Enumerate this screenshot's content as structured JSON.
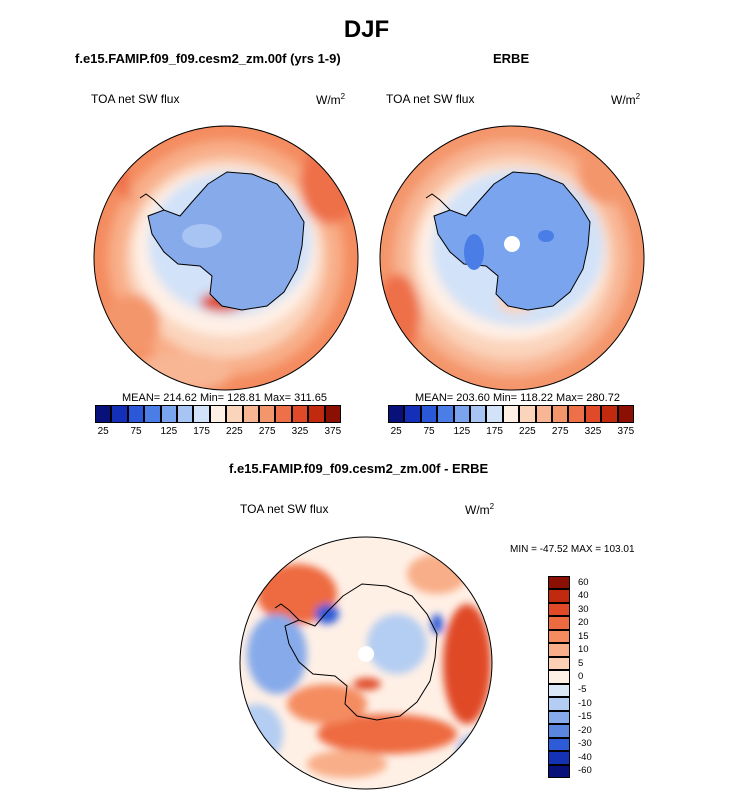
{
  "figure": {
    "title": "DJF"
  },
  "panels": [
    {
      "id": "model",
      "title": "f.e15.FAMIP.f09_f09.cesm2_zm.00f (yrs 1-9)",
      "variable": "TOA net SW flux",
      "units_base": "W/m",
      "units_exp": "2",
      "stats": "MEAN= 214.62  Min= 128.81  Max= 311.65"
    },
    {
      "id": "obs",
      "title": "ERBE",
      "variable": "TOA net SW flux",
      "units_base": "W/m",
      "units_exp": "2",
      "stats": "MEAN= 203.60  Min= 118.22  Max= 280.72"
    },
    {
      "id": "diff",
      "title": "f.e15.FAMIP.f09_f09.cesm2_zm.00f - ERBE",
      "variable": "TOA net SW flux",
      "units_base": "W/m",
      "units_exp": "2",
      "stats": "MIN = -47.52 MAX = 103.01"
    }
  ],
  "colorbars": {
    "absolute": {
      "colors": [
        "#08107a",
        "#1530b8",
        "#2a58d8",
        "#4a7ee6",
        "#7aa4ee",
        "#a8c4f2",
        "#d2e2f8",
        "#fff0e6",
        "#fbd4bc",
        "#f8b694",
        "#f4966c",
        "#ee7048",
        "#e04a28",
        "#c22a10",
        "#8c0f04"
      ],
      "tick_labels": [
        "25",
        "75",
        "125",
        "175",
        "225",
        "275",
        "325",
        "375"
      ]
    },
    "difference": {
      "colors": [
        "#8c0f04",
        "#c22a10",
        "#e04a28",
        "#ee6a40",
        "#f48c60",
        "#f8ae88",
        "#fbd0b4",
        "#fff0e6",
        "#dbe8f8",
        "#b4cdf2",
        "#86aaea",
        "#5a86e0",
        "#2e5cd8",
        "#1532b4",
        "#08107a"
      ],
      "tick_labels": [
        "60",
        "40",
        "30",
        "20",
        "15",
        "10",
        "5",
        "0",
        "-5",
        "-10",
        "-15",
        "-20",
        "-30",
        "-40",
        "-60"
      ]
    }
  },
  "chart_data": [
    {
      "type": "heatmap",
      "projection": "south-polar-stereographic",
      "title": "f.e15.FAMIP.f09_f09.cesm2_zm.00f (yrs 1-9)",
      "variable": "TOA net SW flux",
      "units": "W/m2",
      "mean": 214.62,
      "min": 128.81,
      "max": 311.65,
      "levels": [
        25,
        50,
        75,
        100,
        125,
        150,
        175,
        200,
        225,
        250,
        275,
        300,
        325,
        350,
        375
      ]
    },
    {
      "type": "heatmap",
      "projection": "south-polar-stereographic",
      "title": "ERBE",
      "variable": "TOA net SW flux",
      "units": "W/m2",
      "mean": 203.6,
      "min": 118.22,
      "max": 280.72,
      "levels": [
        25,
        50,
        75,
        100,
        125,
        150,
        175,
        200,
        225,
        250,
        275,
        300,
        325,
        350,
        375
      ]
    },
    {
      "type": "heatmap",
      "projection": "south-polar-stereographic",
      "title": "f.e15.FAMIP.f09_f09.cesm2_zm.00f - ERBE",
      "variable": "TOA net SW flux",
      "units": "W/m2",
      "min": -47.52,
      "max": 103.01,
      "levels": [
        -60,
        -40,
        -30,
        -20,
        -15,
        -10,
        -5,
        0,
        5,
        10,
        15,
        20,
        30,
        40,
        60
      ]
    }
  ]
}
